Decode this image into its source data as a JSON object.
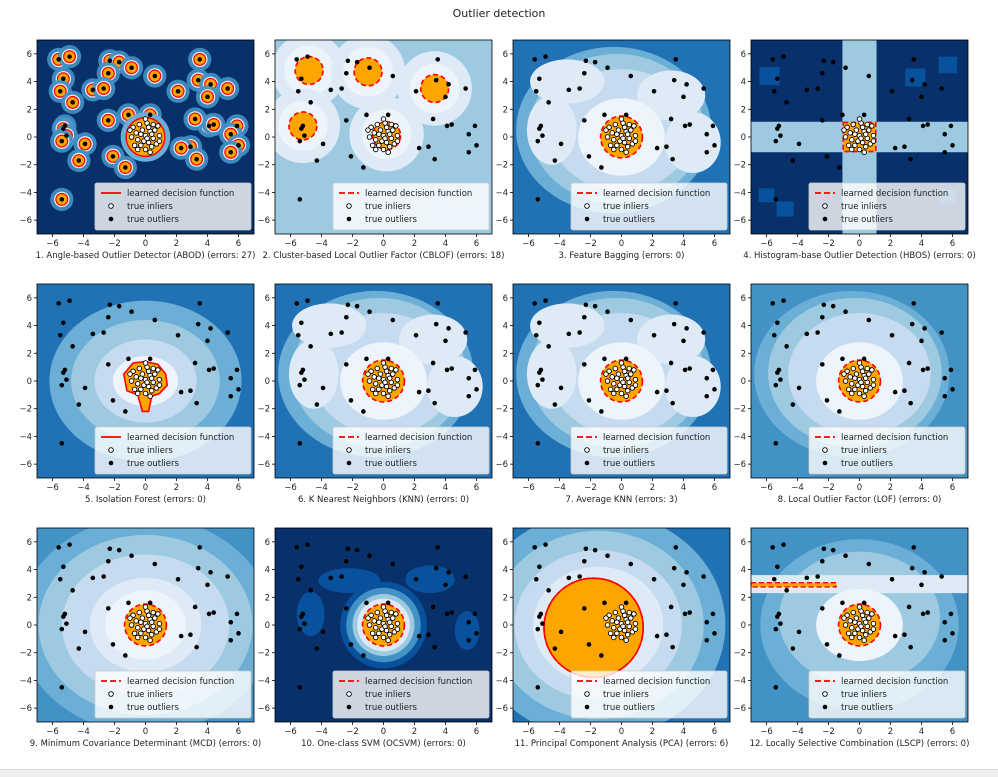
{
  "figure": {
    "title": "Outlier detection"
  },
  "colors": {
    "background": "#ffffff",
    "contour_levels": [
      "#08306b",
      "#08519c",
      "#2171b5",
      "#4292c6",
      "#6baed6",
      "#9ecae1",
      "#c6dbef",
      "#deebf7",
      "#eef4fb"
    ],
    "inlier_region": "#ffa500",
    "decision_line": "#ff0000",
    "outlier_point": "#000000",
    "inlier_point_face": "#ffffff",
    "inlier_point_edge": "#000000"
  },
  "legend": {
    "decision": "learned decision function",
    "inliers": "true inliers",
    "outliers": "true outliers"
  },
  "chart_data": [
    {
      "type": "heatmap",
      "xlabel": "1. Angle-based Outlier Detector (ABOD) (errors: 27)",
      "style": "abod",
      "legend_solid": true,
      "xlim": [
        -7,
        7
      ],
      "ylim": [
        -7,
        7
      ],
      "xticks": [
        -6,
        -4,
        -2,
        0,
        2,
        4,
        6
      ],
      "yticks": [
        -6,
        -4,
        -2,
        0,
        2,
        4,
        6
      ],
      "errors": 27
    },
    {
      "type": "heatmap",
      "xlabel": "2. Cluster-based Local Outlier Factor (CBLOF) (errors: 18)",
      "style": "cblof",
      "legend_solid": false,
      "xlim": [
        -7,
        7
      ],
      "ylim": [
        -7,
        7
      ],
      "xticks": [
        -6,
        -4,
        -2,
        0,
        2,
        4,
        6
      ],
      "yticks": [
        -6,
        -4,
        -2,
        0,
        2,
        4,
        6
      ],
      "errors": 18
    },
    {
      "type": "heatmap",
      "xlabel": "3. Feature Bagging (errors: 0)",
      "style": "fb",
      "legend_solid": false,
      "xlim": [
        -7,
        7
      ],
      "ylim": [
        -7,
        7
      ],
      "xticks": [
        -6,
        -4,
        -2,
        0,
        2,
        4,
        6
      ],
      "yticks": [
        -6,
        -4,
        -2,
        0,
        2,
        4,
        6
      ],
      "errors": 0
    },
    {
      "type": "heatmap",
      "xlabel": "4. Histogram-base Outlier Detection (HBOS) (errors: 0)",
      "style": "hbos",
      "legend_solid": false,
      "xlim": [
        -7,
        7
      ],
      "ylim": [
        -7,
        7
      ],
      "xticks": [
        -6,
        -4,
        -2,
        0,
        2,
        4,
        6
      ],
      "yticks": [
        -6,
        -4,
        -2,
        0,
        2,
        4,
        6
      ],
      "errors": 0
    },
    {
      "type": "heatmap",
      "xlabel": "5. Isolation Forest (errors: 0)",
      "style": "iforest",
      "legend_solid": true,
      "xlim": [
        -7,
        7
      ],
      "ylim": [
        -7,
        7
      ],
      "xticks": [
        -6,
        -4,
        -2,
        0,
        2,
        4,
        6
      ],
      "yticks": [
        -6,
        -4,
        -2,
        0,
        2,
        4,
        6
      ],
      "errors": 0
    },
    {
      "type": "heatmap",
      "xlabel": "6. K Nearest Neighbors (KNN) (errors: 0)",
      "style": "knn",
      "legend_solid": false,
      "xlim": [
        -7,
        7
      ],
      "ylim": [
        -7,
        7
      ],
      "xticks": [
        -6,
        -4,
        -2,
        0,
        2,
        4,
        6
      ],
      "yticks": [
        -6,
        -4,
        -2,
        0,
        2,
        4,
        6
      ],
      "errors": 0
    },
    {
      "type": "heatmap",
      "xlabel": "7. Average KNN (errors: 3)",
      "style": "avgknn",
      "legend_solid": false,
      "xlim": [
        -7,
        7
      ],
      "ylim": [
        -7,
        7
      ],
      "xticks": [
        -6,
        -4,
        -2,
        0,
        2,
        4,
        6
      ],
      "yticks": [
        -6,
        -4,
        -2,
        0,
        2,
        4,
        6
      ],
      "errors": 3
    },
    {
      "type": "heatmap",
      "xlabel": "8. Local Outlier Factor (LOF) (errors: 0)",
      "style": "lof",
      "legend_solid": false,
      "xlim": [
        -7,
        7
      ],
      "ylim": [
        -7,
        7
      ],
      "xticks": [
        -6,
        -4,
        -2,
        0,
        2,
        4,
        6
      ],
      "yticks": [
        -6,
        -4,
        -2,
        0,
        2,
        4,
        6
      ],
      "errors": 0
    },
    {
      "type": "heatmap",
      "xlabel": "9. Minimum Covariance Determinant (MCD) (errors: 0)",
      "style": "mcd",
      "legend_solid": false,
      "xlim": [
        -7,
        7
      ],
      "ylim": [
        -7,
        7
      ],
      "xticks": [
        -6,
        -4,
        -2,
        0,
        2,
        4,
        6
      ],
      "yticks": [
        -6,
        -4,
        -2,
        0,
        2,
        4,
        6
      ],
      "errors": 0
    },
    {
      "type": "heatmap",
      "xlabel": "10. One-class SVM (OCSVM) (errors: 0)",
      "style": "ocsvm",
      "legend_solid": false,
      "xlim": [
        -7,
        7
      ],
      "ylim": [
        -7,
        7
      ],
      "xticks": [
        -6,
        -4,
        -2,
        0,
        2,
        4,
        6
      ],
      "yticks": [
        -6,
        -4,
        -2,
        0,
        2,
        4,
        6
      ],
      "errors": 0
    },
    {
      "type": "heatmap",
      "xlabel": "11. Principal Component Analysis (PCA) (errors: 6)",
      "style": "pca",
      "legend_solid": false,
      "xlim": [
        -7,
        7
      ],
      "ylim": [
        -7,
        7
      ],
      "xticks": [
        -6,
        -4,
        -2,
        0,
        2,
        4,
        6
      ],
      "yticks": [
        -6,
        -4,
        -2,
        0,
        2,
        4,
        6
      ],
      "errors": 6
    },
    {
      "type": "heatmap",
      "xlabel": "12. Locally Selective Combination (LSCP) (errors: 0)",
      "style": "lscp",
      "legend_solid": false,
      "xlim": [
        -7,
        7
      ],
      "ylim": [
        -7,
        7
      ],
      "xticks": [
        -6,
        -4,
        -2,
        0,
        2,
        4,
        6
      ],
      "yticks": [
        -6,
        -4,
        -2,
        0,
        2,
        4,
        6
      ],
      "errors": 0
    }
  ],
  "points": {
    "outliers": [
      [
        -5.6,
        5.6
      ],
      [
        -4.9,
        5.8
      ],
      [
        -5.3,
        4.2
      ],
      [
        -2.3,
        5.5
      ],
      [
        -1.7,
        5.4
      ],
      [
        -0.9,
        5.0
      ],
      [
        -2.4,
        4.6
      ],
      [
        -5.5,
        3.3
      ],
      [
        -3.4,
        3.4
      ],
      [
        -2.7,
        3.5
      ],
      [
        -4.7,
        2.5
      ],
      [
        -5.2,
        0.8
      ],
      [
        -5.3,
        0.6
      ],
      [
        -5.1,
        0.1
      ],
      [
        -5.4,
        -0.3
      ],
      [
        -2.4,
        1.2
      ],
      [
        -1.1,
        1.6
      ],
      [
        -3.9,
        -0.5
      ],
      [
        -2.1,
        -1.4
      ],
      [
        -1.3,
        -2.2
      ],
      [
        -5.4,
        -4.5
      ],
      [
        -4.3,
        -1.7
      ],
      [
        3.5,
        5.6
      ],
      [
        0.6,
        4.4
      ],
      [
        3.4,
        4.1
      ],
      [
        4.2,
        3.8
      ],
      [
        5.3,
        3.5
      ],
      [
        2.1,
        3.3
      ],
      [
        4.0,
        2.9
      ],
      [
        0.3,
        1.6
      ],
      [
        4.1,
        0.8
      ],
      [
        3.2,
        1.3
      ],
      [
        2.9,
        -0.7
      ],
      [
        4.4,
        0.9
      ],
      [
        5.9,
        0.8
      ],
      [
        5.5,
        0.2
      ],
      [
        6.0,
        -0.6
      ],
      [
        5.5,
        -1.1
      ],
      [
        2.3,
        -0.8
      ],
      [
        3.3,
        -1.6
      ]
    ],
    "inliers": [
      [
        0.3,
        0.4
      ],
      [
        -0.2,
        0.5
      ],
      [
        0.0,
        0.1
      ],
      [
        0.5,
        -0.1
      ],
      [
        -0.5,
        -0.2
      ],
      [
        0.2,
        -0.4
      ],
      [
        -0.3,
        -0.6
      ],
      [
        0.6,
        0.5
      ],
      [
        -0.6,
        0.3
      ],
      [
        0.1,
        1.0
      ],
      [
        0.9,
        0.1
      ],
      [
        -0.9,
        0.0
      ],
      [
        0.0,
        -0.9
      ],
      [
        0.4,
        -0.7
      ],
      [
        -0.4,
        0.9
      ],
      [
        0.7,
        -0.5
      ],
      [
        -0.7,
        -0.6
      ],
      [
        0.2,
        0.7
      ],
      [
        -0.1,
        -0.3
      ],
      [
        0.4,
        0.2
      ],
      [
        -0.3,
        0.2
      ],
      [
        0.8,
        0.8
      ],
      [
        -0.8,
        0.7
      ],
      [
        0.1,
        -0.1
      ],
      [
        0.5,
        0.9
      ],
      [
        -0.5,
        -0.9
      ],
      [
        0.9,
        -0.3
      ],
      [
        -1.0,
        0.5
      ],
      [
        0.0,
        1.3
      ],
      [
        0.3,
        -1.1
      ]
    ]
  }
}
